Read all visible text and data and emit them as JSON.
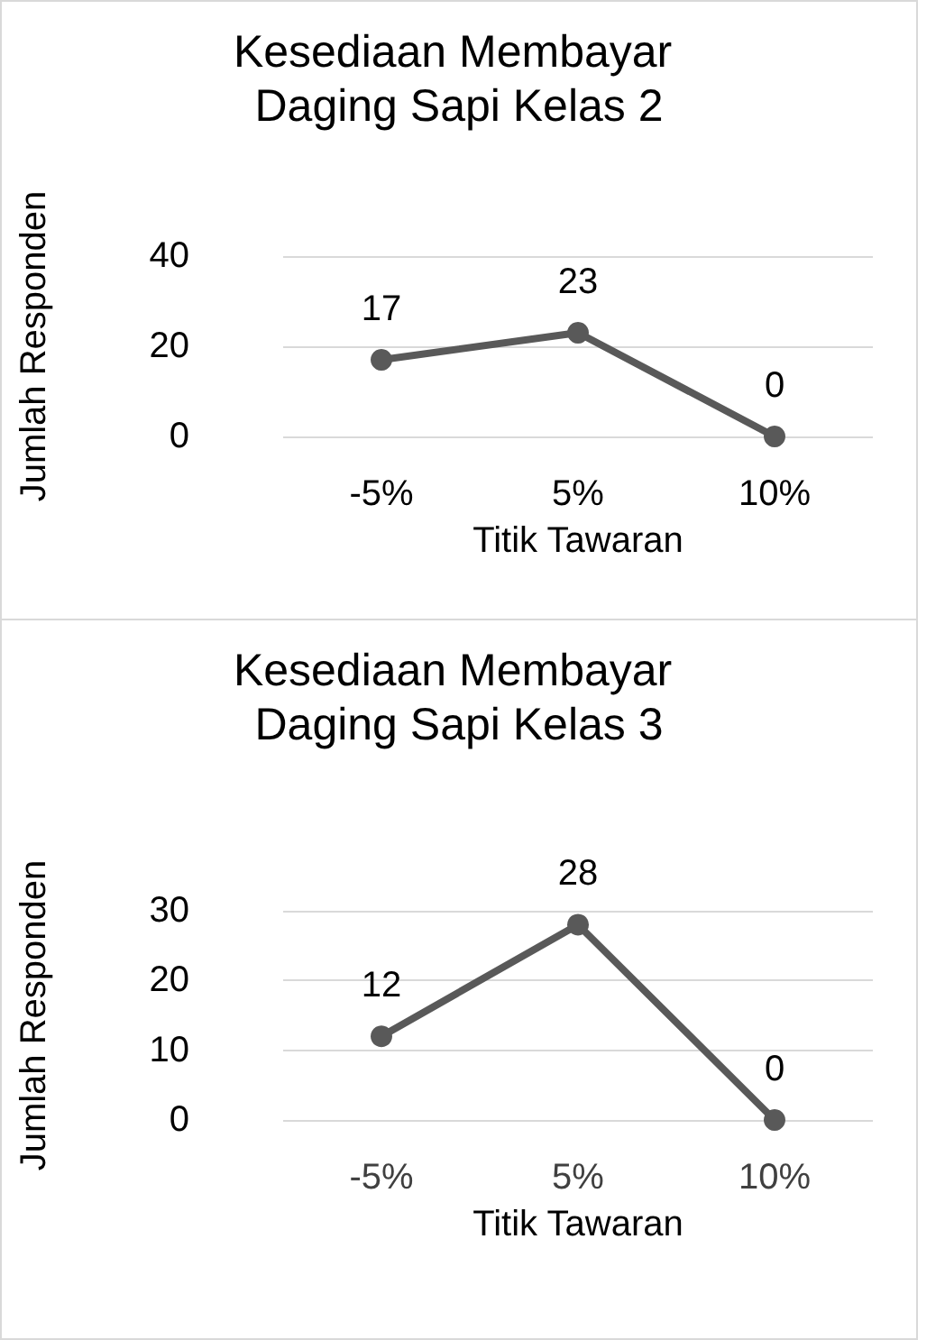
{
  "chart_data": [
    {
      "type": "line",
      "title": "Kesediaan Membayar Daging Sapi Kelas 2",
      "xlabel": "Titik Tawaran",
      "ylabel": "Jumlah Responden",
      "categories": [
        "-5%",
        "5%",
        "10%"
      ],
      "series": [
        {
          "color": "#595959",
          "values": [
            17,
            23,
            0
          ]
        }
      ],
      "ylim": [
        0,
        40
      ],
      "yticks": [
        0,
        20,
        40
      ],
      "grid": "y",
      "data_labels": true,
      "marker": "circle"
    },
    {
      "type": "line",
      "title": "Kesediaan Membayar Daging Sapi Kelas 3",
      "xlabel": "Titik Tawaran",
      "ylabel": "Jumlah Responden",
      "categories": [
        "-5%",
        "5%",
        "10%"
      ],
      "series": [
        {
          "color": "#595959",
          "values": [
            12,
            28,
            0
          ]
        }
      ],
      "ylim": [
        0,
        30
      ],
      "yticks": [
        0,
        10,
        20,
        30
      ],
      "grid": "y",
      "data_labels": true,
      "marker": "circle"
    }
  ]
}
